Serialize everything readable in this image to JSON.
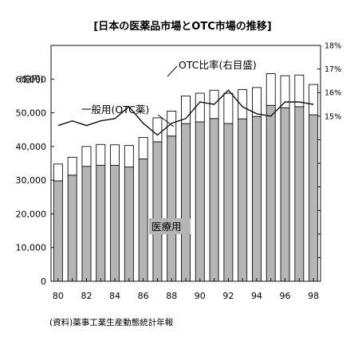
{
  "chart_data": {
    "type": "bar",
    "title": "[日本の医薬品市場とOTC市場の推移]",
    "ylabel": "(億円)",
    "ylim": [
      0,
      70000
    ],
    "y_ticks": [
      0,
      10000,
      20000,
      30000,
      40000,
      50000,
      60000
    ],
    "y_tick_labels": [
      "0",
      "10,000",
      "20,000",
      "30,000",
      "40,000",
      "50,000",
      "60,000"
    ],
    "right_ylim": [
      8,
      18
    ],
    "right_y_ticks": [
      15,
      16,
      17,
      18
    ],
    "right_y_tick_labels": [
      "15%",
      "16%",
      "17%",
      "18%"
    ],
    "stacked": true,
    "grid": false,
    "x": [
      80,
      81,
      82,
      83,
      84,
      85,
      86,
      87,
      88,
      89,
      90,
      91,
      92,
      93,
      94,
      95,
      96,
      97,
      98
    ],
    "x_tick_labels": [
      "80",
      "82",
      "84",
      "86",
      "88",
      "90",
      "92",
      "94",
      "96",
      "98"
    ],
    "series": [
      {
        "name": "医療用",
        "kind": "bar",
        "color": "#b5b5b5",
        "values": [
          29800,
          31500,
          34100,
          34400,
          34400,
          33900,
          36300,
          41400,
          43100,
          46800,
          47300,
          48300,
          46800,
          48200,
          48900,
          52200,
          51500,
          51800,
          49400
        ]
      },
      {
        "name": "一般用(OTC薬)",
        "kind": "bar",
        "color": "#ffffff",
        "values": [
          5000,
          5300,
          5900,
          6200,
          6100,
          6400,
          6400,
          7100,
          7400,
          8200,
          8500,
          8400,
          9000,
          8700,
          8600,
          9400,
          9500,
          9400,
          9000
        ]
      },
      {
        "name": "OTC比率(右目盛)",
        "kind": "line",
        "color": "#111111",
        "values": [
          14.6,
          14.8,
          14.6,
          14.8,
          14.9,
          15.4,
          14.7,
          14.2,
          14.7,
          14.9,
          15.6,
          15.5,
          16.1,
          15.4,
          15.1,
          15.0,
          15.6,
          15.6,
          15.5
        ]
      }
    ],
    "annotations": [
      "OTC比率(右目盛)",
      "一般用(OTC薬)",
      "医療用"
    ],
    "source": "(資料)薬事工業生産動態統計年報"
  }
}
